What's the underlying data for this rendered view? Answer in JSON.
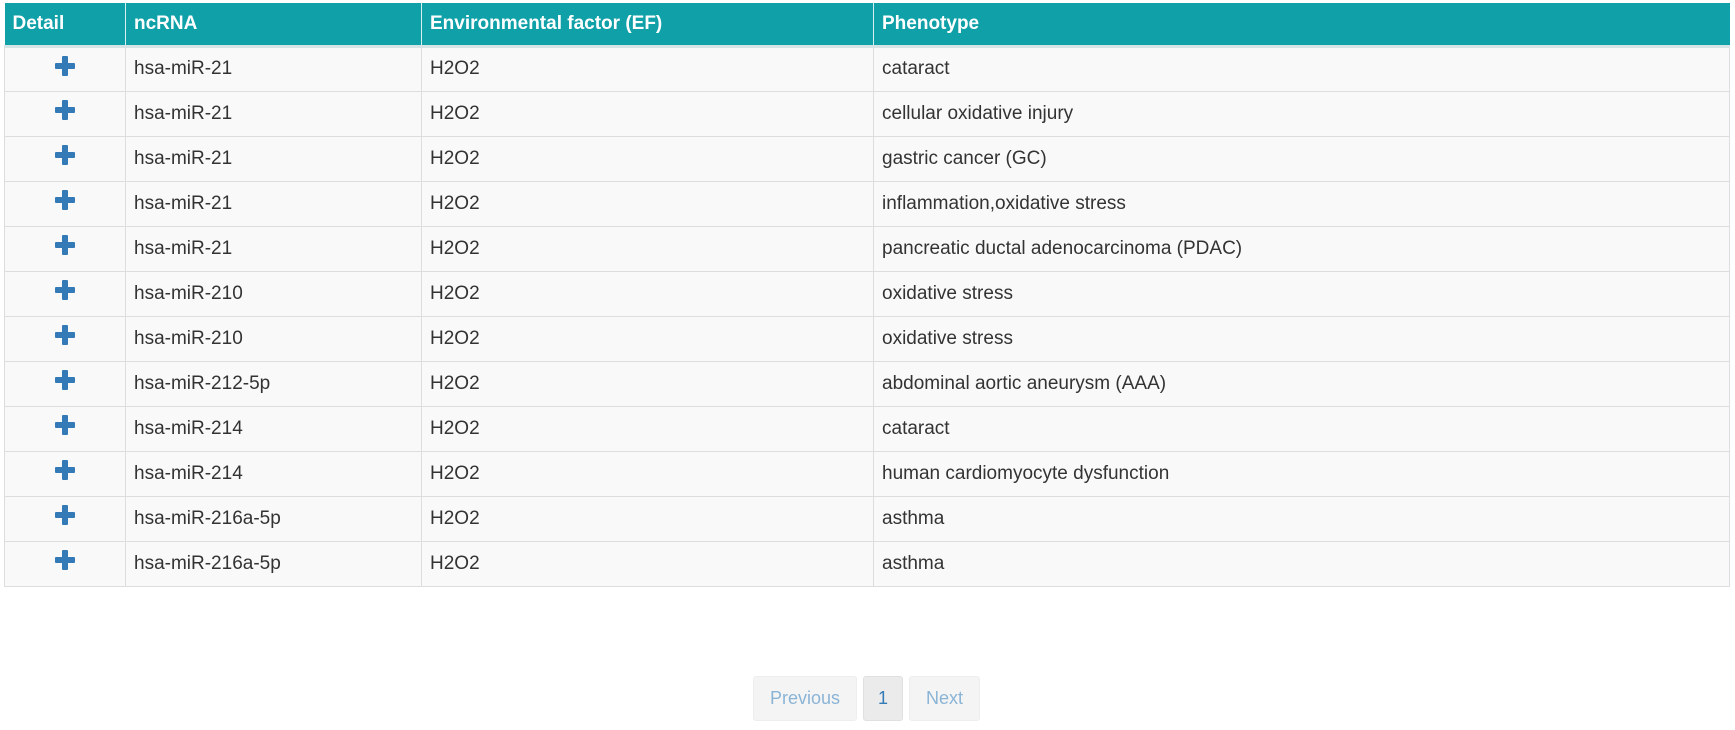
{
  "table": {
    "headers": {
      "detail": "Detail",
      "ncrna": "ncRNA",
      "ef": "Environmental factor (EF)",
      "phenotype": "Phenotype"
    },
    "rows": [
      {
        "ncrna": "hsa-miR-21",
        "ef": "H2O2",
        "phenotype": "cataract"
      },
      {
        "ncrna": "hsa-miR-21",
        "ef": "H2O2",
        "phenotype": "cellular oxidative injury"
      },
      {
        "ncrna": "hsa-miR-21",
        "ef": "H2O2",
        "phenotype": "gastric cancer (GC)"
      },
      {
        "ncrna": "hsa-miR-21",
        "ef": "H2O2",
        "phenotype": "inflammation,oxidative stress"
      },
      {
        "ncrna": "hsa-miR-21",
        "ef": "H2O2",
        "phenotype": "pancreatic ductal adenocarcinoma (PDAC)"
      },
      {
        "ncrna": "hsa-miR-210",
        "ef": "H2O2",
        "phenotype": "oxidative stress"
      },
      {
        "ncrna": "hsa-miR-210",
        "ef": "H2O2",
        "phenotype": "oxidative stress"
      },
      {
        "ncrna": "hsa-miR-212-5p",
        "ef": "H2O2",
        "phenotype": "abdominal aortic aneurysm (AAA)"
      },
      {
        "ncrna": "hsa-miR-214",
        "ef": "H2O2",
        "phenotype": "cataract"
      },
      {
        "ncrna": "hsa-miR-214",
        "ef": "H2O2",
        "phenotype": "human cardiomyocyte dysfunction"
      },
      {
        "ncrna": "hsa-miR-216a-5p",
        "ef": "H2O2",
        "phenotype": "asthma"
      },
      {
        "ncrna": "hsa-miR-216a-5p",
        "ef": "H2O2",
        "phenotype": "asthma"
      }
    ],
    "detail_icon": "plus-icon"
  },
  "pagination": {
    "previous_label": "Previous",
    "page_label": "1",
    "next_label": "Next"
  },
  "colors": {
    "header_bg": "#0fa0a8",
    "icon": "#337ab7"
  }
}
